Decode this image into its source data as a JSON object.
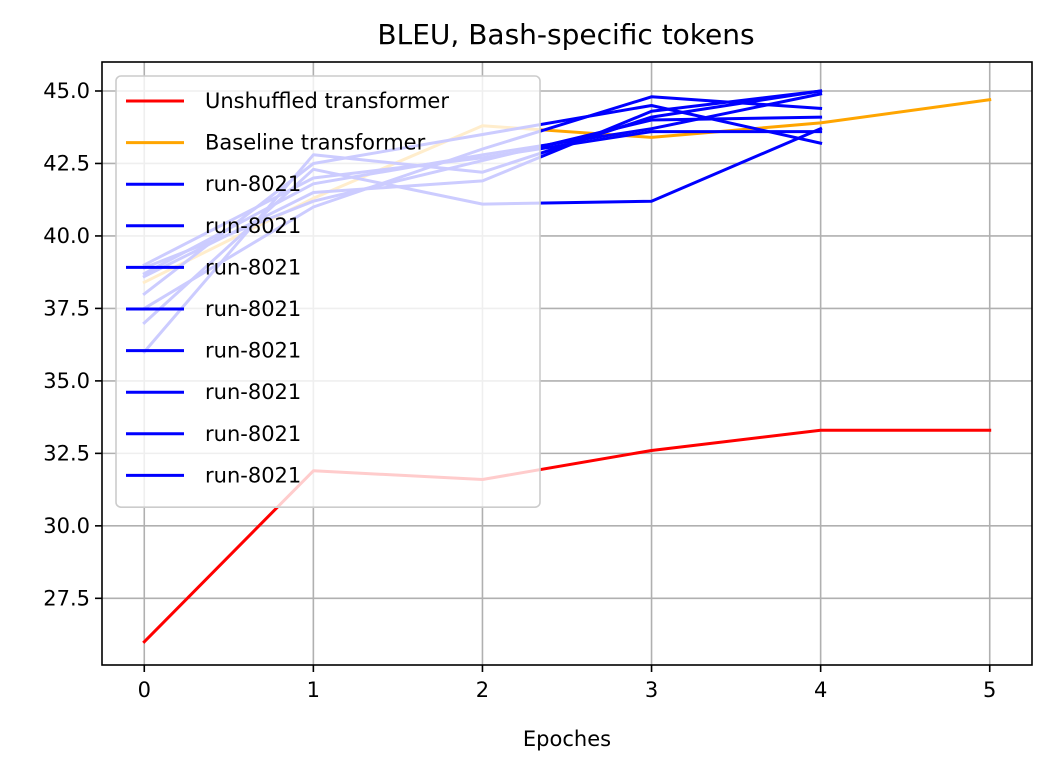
{
  "chart_data": {
    "type": "line",
    "title": "BLEU, Bash-specific tokens",
    "xlabel": "Epoches",
    "ylabel": "",
    "xlim": [
      -0.25,
      5.25
    ],
    "ylim": [
      25.2,
      46.0
    ],
    "xticks": [
      0,
      1,
      2,
      3,
      4,
      5
    ],
    "yticks": [
      27.5,
      30.0,
      32.5,
      35.0,
      37.5,
      40.0,
      42.5,
      45.0
    ],
    "grid": true,
    "legend_position": "upper-left",
    "series": [
      {
        "name": "Unshuffled transformer",
        "color": "#ff0000",
        "x": [
          0,
          1,
          2,
          3,
          4,
          5
        ],
        "y": [
          26.0,
          31.9,
          31.6,
          32.6,
          33.3,
          33.3
        ]
      },
      {
        "name": "Baseline transformer",
        "color": "#ffa500",
        "x": [
          0,
          1,
          2,
          3,
          4,
          5
        ],
        "y": [
          38.4,
          41.3,
          43.8,
          43.4,
          43.9,
          44.7
        ]
      },
      {
        "name": "run-8021",
        "color": "#0000ff",
        "x": [
          0,
          1,
          2,
          3,
          4
        ],
        "y": [
          36.0,
          42.8,
          42.2,
          44.1,
          45.0
        ]
      },
      {
        "name": "run-8021",
        "color": "#0000ff",
        "x": [
          0,
          1,
          2,
          3,
          4
        ],
        "y": [
          37.0,
          42.3,
          41.1,
          41.2,
          43.7
        ]
      },
      {
        "name": "run-8021",
        "color": "#0000ff",
        "x": [
          0,
          1,
          2,
          3,
          4
        ],
        "y": [
          37.5,
          41.0,
          43.0,
          44.8,
          44.4
        ]
      },
      {
        "name": "run-8021",
        "color": "#0000ff",
        "x": [
          0,
          1,
          2,
          3,
          4
        ],
        "y": [
          38.0,
          42.5,
          43.5,
          44.5,
          43.2
        ]
      },
      {
        "name": "run-8021",
        "color": "#0000ff",
        "x": [
          0,
          1,
          2,
          3,
          4
        ],
        "y": [
          38.6,
          41.5,
          41.9,
          44.3,
          45.0
        ]
      },
      {
        "name": "run-8021",
        "color": "#0000ff",
        "x": [
          0,
          1,
          2,
          3,
          4
        ],
        "y": [
          38.9,
          41.2,
          42.6,
          44.0,
          44.1
        ]
      },
      {
        "name": "run-8021",
        "color": "#0000ff",
        "x": [
          0,
          1,
          2,
          3,
          4
        ],
        "y": [
          38.7,
          41.8,
          42.8,
          43.7,
          44.9
        ]
      },
      {
        "name": "run-8021",
        "color": "#0000ff",
        "x": [
          0,
          1,
          2,
          3,
          4
        ],
        "y": [
          39.0,
          42.0,
          42.7,
          43.6,
          43.6
        ]
      }
    ]
  }
}
